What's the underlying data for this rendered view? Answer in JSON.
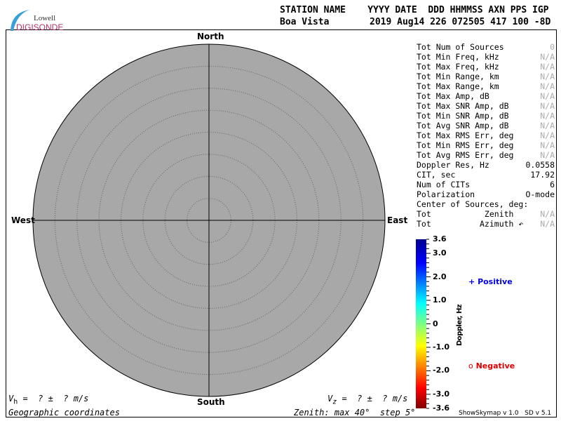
{
  "logo": {
    "line1": "Lowell",
    "line2": "DIGISONDE"
  },
  "header": {
    "row1": "STATION NAME    YYYY DATE  DDD HHMMSS AXN PPS IGP",
    "station": "Boa Vista",
    "row2": "2019 Aug14 226 072505 417 100 -8D"
  },
  "stats": [
    {
      "label": "Tot Num of Sources",
      "value": "0",
      "na": true
    },
    {
      "label": "Tot Min Freq, kHz",
      "value": "N/A",
      "na": true
    },
    {
      "label": "Tot Max Freq, kHz",
      "value": "N/A",
      "na": true
    },
    {
      "label": "Tot Min Range, km",
      "value": "N/A",
      "na": true
    },
    {
      "label": "Tot Max Range, km",
      "value": "N/A",
      "na": true
    },
    {
      "label": "Tot Max Amp, dB",
      "value": "N/A",
      "na": true
    },
    {
      "label": "Tot Max SNR Amp, dB",
      "value": "N/A",
      "na": true
    },
    {
      "label": "Tot Min SNR Amp, dB",
      "value": "N/A",
      "na": true
    },
    {
      "label": "Tot Avg SNR Amp, dB",
      "value": "N/A",
      "na": true
    },
    {
      "label": "Tot Max RMS Err, deg",
      "value": "N/A",
      "na": true
    },
    {
      "label": "Tot Min RMS Err, deg",
      "value": "N/A",
      "na": true
    },
    {
      "label": "Tot Avg RMS Err, deg",
      "value": "N/A",
      "na": true
    },
    {
      "label": "Doppler Res, Hz",
      "value": "0.0558",
      "na": false
    },
    {
      "label": "CIT, sec",
      "value": "17.92",
      "na": false
    },
    {
      "label": "Num of CITs",
      "value": "6",
      "na": false
    },
    {
      "label": "Polarization",
      "value": "O-mode",
      "na": false
    },
    {
      "label": "Center of Sources, deg:",
      "value": "",
      "na": false
    },
    {
      "label": "Tot           Zenith",
      "value": "N/A",
      "na": true
    },
    {
      "label": "Tot          Azimuth ↶",
      "value": "N/A",
      "na": true
    }
  ],
  "legend": {
    "positive": "Positive",
    "negative": "Negative",
    "positive_symbol": "+",
    "negative_symbol": "o",
    "positive_color": "#0000dd",
    "negative_color": "#dd0000"
  },
  "footer": {
    "vh": "V",
    "vh_sub": "h",
    "vh_rest": " =  ? ±  ? m/s",
    "vz": "V",
    "vz_sub": "z",
    "vz_rest": " =  ? ±  ? m/s",
    "coords": "Geographic coordinates",
    "zenith": "Zenith: max 40°  step 5°",
    "version": "ShowSkymap v 1.0   SD v 5.1"
  },
  "chart_data": {
    "type": "scatter",
    "projection": "polar-skymap",
    "directions": {
      "north": "North",
      "south": "South",
      "east": "East",
      "west": "West"
    },
    "zenith_max": 40,
    "zenith_step": 5,
    "background": "#a8a8a8",
    "points": [],
    "colorbar": {
      "label": "Doppler, Hz",
      "range": [
        -3.6,
        3.6
      ],
      "ticks": [
        "3.6",
        "3.0",
        "2.0",
        "1.0",
        "0",
        "-1.0",
        "-2.0",
        "-3.0",
        "-3.6"
      ],
      "tick_values": [
        3.6,
        3,
        2,
        1,
        0,
        -1,
        -2,
        -3,
        -3.6
      ],
      "colormap": "jet"
    }
  }
}
